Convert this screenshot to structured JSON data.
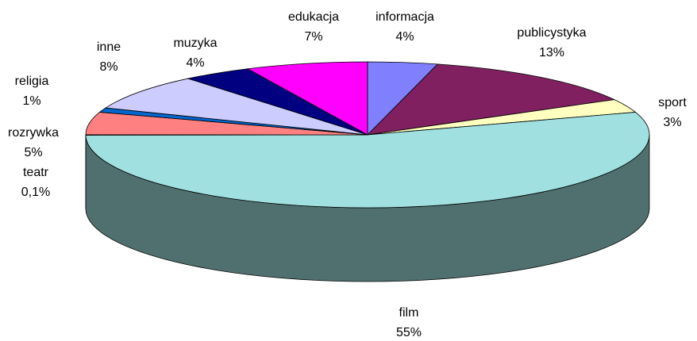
{
  "chart_data": {
    "type": "pie3d",
    "categories": [
      "informacja",
      "publicystyka",
      "sport",
      "film",
      "teatr",
      "rozrywka",
      "religia",
      "inne",
      "muzyka",
      "edukacja"
    ],
    "values": [
      4,
      13,
      3,
      55,
      0.1,
      5,
      1,
      8,
      4,
      7
    ],
    "value_labels": [
      "4%",
      "13%",
      "3%",
      "55%",
      "0,1%",
      "5%",
      "1%",
      "8%",
      "4%",
      "7%"
    ],
    "colors": [
      "#8080ff",
      "#802060",
      "#ffffc0",
      "#a0e0e0",
      "#006699",
      "#ff8080",
      "#0066cc",
      "#ccccff",
      "#000080",
      "#ff00ff"
    ]
  }
}
